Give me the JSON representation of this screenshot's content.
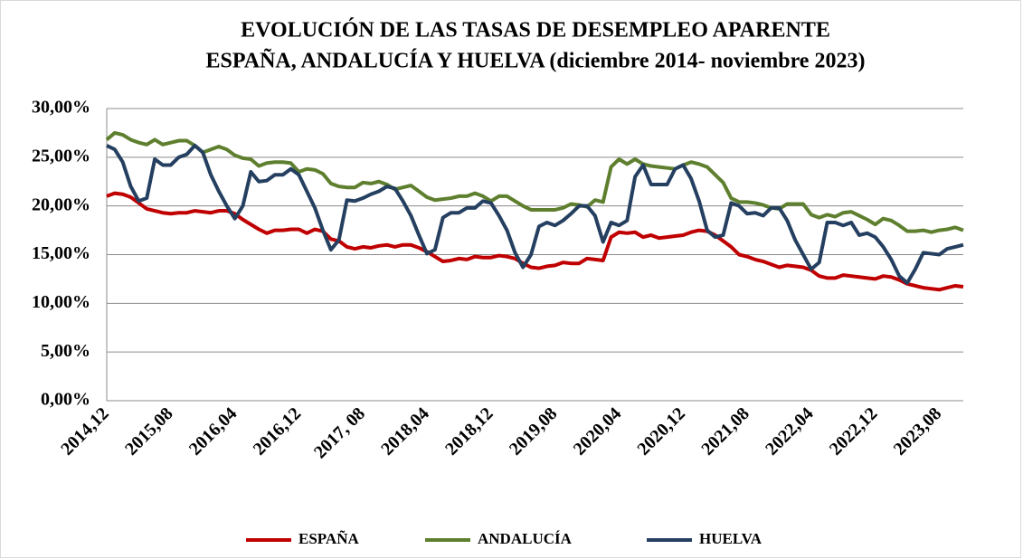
{
  "chart_data": {
    "type": "line",
    "title": [
      "EVOLUCIÓN DE LAS TASAS DE DESEMPLEO APARENTE",
      "ESPAÑA, ANDALUCÍA Y HUELVA (diciembre 2014- noviembre 2023)"
    ],
    "categories": [
      "2014,12",
      null,
      null,
      null,
      null,
      null,
      null,
      null,
      "2015,08",
      null,
      null,
      null,
      null,
      null,
      null,
      null,
      "2016,04",
      null,
      null,
      null,
      null,
      null,
      null,
      null,
      "2016,12",
      null,
      null,
      null,
      null,
      null,
      null,
      null,
      "2017, 08",
      null,
      null,
      null,
      null,
      null,
      null,
      null,
      "2018,04",
      null,
      null,
      null,
      null,
      null,
      null,
      null,
      "2018,12",
      null,
      null,
      null,
      null,
      null,
      null,
      null,
      "2019,08",
      null,
      null,
      null,
      null,
      null,
      null,
      null,
      "2020,04",
      null,
      null,
      null,
      null,
      null,
      null,
      null,
      "2020,12",
      null,
      null,
      null,
      null,
      null,
      null,
      null,
      "2021,08",
      null,
      null,
      null,
      null,
      null,
      null,
      null,
      "2022,04",
      null,
      null,
      null,
      null,
      null,
      null,
      null,
      "2022,12",
      null,
      null,
      null,
      null,
      null,
      null,
      null,
      "2023,08",
      null,
      null,
      null
    ],
    "series": [
      {
        "name": "ESPAÑA",
        "color": "#c00000",
        "values": [
          21.0,
          21.3,
          21.2,
          20.9,
          20.3,
          19.7,
          19.5,
          19.3,
          19.2,
          19.3,
          19.3,
          19.5,
          19.4,
          19.3,
          19.5,
          19.5,
          19.2,
          18.6,
          18.1,
          17.6,
          17.2,
          17.5,
          17.5,
          17.6,
          17.6,
          17.2,
          17.6,
          17.4,
          16.6,
          16.4,
          15.8,
          15.6,
          15.8,
          15.7,
          15.9,
          16.0,
          15.8,
          16.0,
          16.0,
          15.7,
          15.3,
          14.8,
          14.3,
          14.4,
          14.6,
          14.5,
          14.8,
          14.7,
          14.7,
          14.9,
          14.8,
          14.6,
          14.1,
          13.7,
          13.6,
          13.8,
          13.9,
          14.2,
          14.1,
          14.1,
          14.6,
          14.5,
          14.4,
          16.8,
          17.3,
          17.2,
          17.3,
          16.8,
          17.0,
          16.7,
          16.8,
          16.9,
          17.0,
          17.3,
          17.5,
          17.4,
          17.0,
          16.4,
          15.8,
          15.0,
          14.8,
          14.5,
          14.3,
          14.0,
          13.7,
          13.9,
          13.8,
          13.7,
          13.4,
          12.8,
          12.6,
          12.6,
          12.9,
          12.8,
          12.7,
          12.6,
          12.5,
          12.8,
          12.7,
          12.4,
          12.0,
          11.8,
          11.6,
          11.5,
          11.4,
          11.6,
          11.8,
          11.7
        ]
      },
      {
        "name": "ANDALUCÍA",
        "color": "#5e7f2e",
        "values": [
          26.8,
          27.5,
          27.3,
          26.8,
          26.5,
          26.3,
          26.8,
          26.3,
          26.5,
          26.7,
          26.7,
          26.2,
          25.5,
          25.8,
          26.1,
          25.8,
          25.2,
          24.9,
          24.8,
          24.1,
          24.4,
          24.5,
          24.5,
          24.4,
          23.5,
          23.8,
          23.7,
          23.3,
          22.3,
          22.0,
          21.9,
          21.9,
          22.4,
          22.3,
          22.5,
          22.2,
          21.7,
          21.9,
          22.1,
          21.5,
          20.9,
          20.6,
          20.7,
          20.8,
          21.0,
          21.0,
          21.3,
          21.0,
          20.5,
          21.0,
          21.0,
          20.5,
          20.0,
          19.6,
          19.6,
          19.6,
          19.6,
          19.8,
          20.2,
          20.1,
          19.9,
          20.6,
          20.4,
          24.0,
          24.8,
          24.3,
          24.8,
          24.3,
          24.1,
          24.0,
          23.9,
          23.8,
          24.2,
          24.5,
          24.3,
          24.0,
          23.2,
          22.4,
          20.8,
          20.4,
          20.4,
          20.3,
          20.1,
          19.8,
          19.7,
          20.2,
          20.2,
          20.2,
          19.1,
          18.8,
          19.1,
          18.9,
          19.3,
          19.4,
          19.0,
          18.6,
          18.1,
          18.7,
          18.5,
          18.0,
          17.4,
          17.4,
          17.5,
          17.3,
          17.5,
          17.6,
          17.8,
          17.5
        ]
      },
      {
        "name": "HUELVA",
        "color": "#243f60",
        "values": [
          26.2,
          25.8,
          24.5,
          22.0,
          20.5,
          20.8,
          24.8,
          24.2,
          24.2,
          25.0,
          25.3,
          26.2,
          25.5,
          23.2,
          21.5,
          20.0,
          18.7,
          20.0,
          23.5,
          22.5,
          22.6,
          23.2,
          23.2,
          23.8,
          23.2,
          21.5,
          19.8,
          17.5,
          15.5,
          16.5,
          20.6,
          20.5,
          20.8,
          21.2,
          21.5,
          22.0,
          21.8,
          20.5,
          19.0,
          17.0,
          15.1,
          15.5,
          18.8,
          19.3,
          19.3,
          19.8,
          19.8,
          20.5,
          20.3,
          19.0,
          17.5,
          15.2,
          13.7,
          15.0,
          17.9,
          18.3,
          18.0,
          18.5,
          19.2,
          20.0,
          20.0,
          19.0,
          16.3,
          18.3,
          18.0,
          18.5,
          23.0,
          24.2,
          22.2,
          22.2,
          22.2,
          23.8,
          24.2,
          22.8,
          20.5,
          17.5,
          16.8,
          17.0,
          20.3,
          20.0,
          19.2,
          19.3,
          19.0,
          19.8,
          19.8,
          18.5,
          16.5,
          15.0,
          13.5,
          14.2,
          18.3,
          18.3,
          18.0,
          18.3,
          17.0,
          17.2,
          16.8,
          15.8,
          14.5,
          12.8,
          12.1,
          13.5,
          15.2,
          15.1,
          15.0,
          15.6,
          15.8,
          16.0
        ]
      }
    ],
    "ylim": [
      0,
      30
    ],
    "yticks": [
      {
        "value": 0,
        "label": "0,00%"
      },
      {
        "value": 5,
        "label": "5,00%"
      },
      {
        "value": 10,
        "label": "10,00%"
      },
      {
        "value": 15,
        "label": "15,00%"
      },
      {
        "value": 20,
        "label": "20,00%"
      },
      {
        "value": 25,
        "label": "25,00%"
      },
      {
        "value": 30,
        "label": "30,00%"
      }
    ],
    "grid": true,
    "legend": "bottom"
  }
}
